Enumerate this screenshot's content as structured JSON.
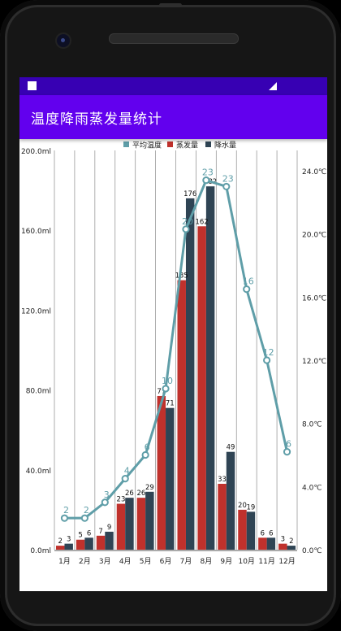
{
  "app": {
    "title": "温度降雨蒸发量统计"
  },
  "icons": {
    "notification": "notification-icon",
    "signal": "signal-icon"
  },
  "colors": {
    "app_bar": "#6200ee",
    "status_bar": "#3700b3",
    "temperature": "#5f9ea8",
    "evaporation": "#c0312c",
    "precipitation": "#2f4454"
  },
  "chart_data": {
    "type": "bar",
    "categories": [
      "1月",
      "2月",
      "3月",
      "4月",
      "5月",
      "6月",
      "7月",
      "8月",
      "9月",
      "10月",
      "11月",
      "12月"
    ],
    "series": [
      {
        "name": "蒸发量",
        "type": "bar",
        "values": [
          2,
          5,
          7,
          23,
          26,
          77,
          135,
          162,
          33,
          20,
          6,
          3
        ]
      },
      {
        "name": "降水量",
        "type": "bar",
        "values": [
          3,
          6,
          9,
          26,
          29,
          71,
          176,
          182,
          49,
          19,
          6,
          2
        ]
      },
      {
        "name": "平均温度",
        "type": "line",
        "axis": "right",
        "values": [
          2,
          2,
          3,
          4.5,
          6,
          10.2,
          20.3,
          23.4,
          23,
          16.5,
          12,
          6.2
        ],
        "labels": [
          "2",
          "2",
          "3",
          "4",
          "6",
          "10",
          "20",
          "23",
          "23",
          "16",
          "12",
          "6"
        ]
      }
    ],
    "legend": [
      "平均温度",
      "蒸发量",
      "降水量"
    ],
    "legend_position": "top-center",
    "y_left": {
      "ticks": [
        "0.0ml",
        "40.0ml",
        "80.0ml",
        "120.0ml",
        "160.0ml",
        "200.0ml"
      ],
      "range": [
        0,
        200
      ]
    },
    "y_right": {
      "ticks": [
        "0.0℃",
        "4.0℃",
        "8.0℃",
        "12.0℃",
        "16.0℃",
        "20.0℃",
        "24.0℃"
      ],
      "range": [
        0,
        24
      ]
    },
    "grid": "vertical"
  }
}
